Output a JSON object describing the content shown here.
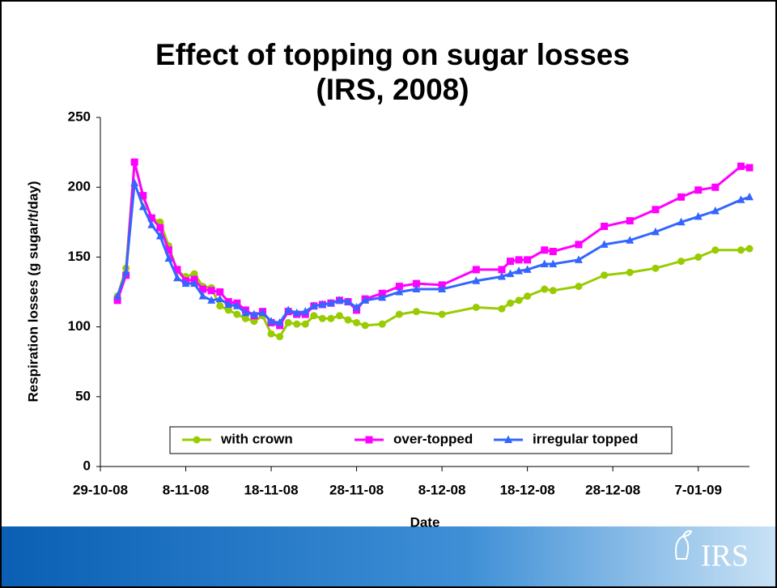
{
  "chart_data": {
    "type": "line",
    "title": "Effect of topping on sugar losses",
    "subtitle": "(IRS, 2008)",
    "x_label": "Date",
    "y_label": "Respiration losses (g sugar/t/day)",
    "x": [
      "2008-10-31",
      "2008-11-01",
      "2008-11-02",
      "2008-11-03",
      "2008-11-04",
      "2008-11-05",
      "2008-11-06",
      "2008-11-07",
      "2008-11-08",
      "2008-11-09",
      "2008-11-10",
      "2008-11-11",
      "2008-11-12",
      "2008-11-13",
      "2008-11-14",
      "2008-11-15",
      "2008-11-16",
      "2008-11-17",
      "2008-11-18",
      "2008-11-19",
      "2008-11-20",
      "2008-11-21",
      "2008-11-22",
      "2008-11-23",
      "2008-11-24",
      "2008-11-25",
      "2008-11-26",
      "2008-11-27",
      "2008-11-28",
      "2008-11-29",
      "2008-12-01",
      "2008-12-03",
      "2008-12-05",
      "2008-12-08",
      "2008-12-12",
      "2008-12-15",
      "2008-12-16",
      "2008-12-17",
      "2008-12-18",
      "2008-12-20",
      "2008-12-21",
      "2008-12-24",
      "2008-12-27",
      "2008-12-30",
      "2009-01-02",
      "2009-01-05",
      "2009-01-07",
      "2009-01-09",
      "2009-01-12",
      "2009-01-13"
    ],
    "series": [
      {
        "name": "with crown",
        "color": "#99cc00",
        "marker": "circle",
        "values": [
          122,
          142,
          218,
          193,
          178,
          175,
          158,
          140,
          136,
          138,
          129,
          128,
          115,
          112,
          109,
          106,
          104,
          108,
          95,
          93,
          103,
          102,
          102,
          108,
          106,
          106,
          108,
          105,
          103,
          101,
          102,
          109,
          111,
          109,
          114,
          113,
          117,
          119,
          122,
          127,
          126,
          129,
          137,
          139,
          142,
          147,
          150,
          155,
          155,
          156
        ]
      },
      {
        "name": "over-topped",
        "color": "#ff00ff",
        "marker": "square",
        "values": [
          119,
          137,
          218,
          194,
          178,
          171,
          155,
          141,
          133,
          134,
          127,
          126,
          125,
          118,
          117,
          112,
          108,
          111,
          103,
          101,
          111,
          109,
          109,
          115,
          116,
          117,
          119,
          118,
          112,
          120,
          124,
          129,
          131,
          130,
          141,
          141,
          147,
          148,
          148,
          155,
          154,
          159,
          172,
          176,
          184,
          193,
          198,
          200,
          215,
          214
        ]
      },
      {
        "name": "irregular topped",
        "color": "#3366ff",
        "marker": "triangle",
        "values": [
          122,
          139,
          203,
          186,
          173,
          165,
          149,
          135,
          131,
          131,
          122,
          119,
          120,
          116,
          115,
          110,
          109,
          110,
          104,
          103,
          112,
          110,
          111,
          115,
          116,
          117,
          119,
          118,
          114,
          119,
          121,
          125,
          127,
          127,
          133,
          136,
          138,
          140,
          141,
          145,
          145,
          148,
          159,
          162,
          168,
          175,
          179,
          183,
          191,
          193
        ]
      }
    ],
    "xlim": [
      "2008-10-29",
      "2009-01-13"
    ],
    "xticks": [
      {
        "value": "2008-10-29",
        "label": "29-10-08"
      },
      {
        "value": "2008-11-08",
        "label": "8-11-08"
      },
      {
        "value": "2008-11-18",
        "label": "18-11-08"
      },
      {
        "value": "2008-11-28",
        "label": "28-11-08"
      },
      {
        "value": "2008-12-08",
        "label": "8-12-08"
      },
      {
        "value": "2008-12-18",
        "label": "18-12-08"
      },
      {
        "value": "2008-12-28",
        "label": "28-12-08"
      },
      {
        "value": "2009-01-07",
        "label": "7-01-09"
      }
    ],
    "ylim": [
      0,
      250
    ],
    "yticks": [
      0,
      50,
      100,
      150,
      200,
      250
    ],
    "grid": false,
    "legend": "bottom"
  },
  "logo": "IRS"
}
